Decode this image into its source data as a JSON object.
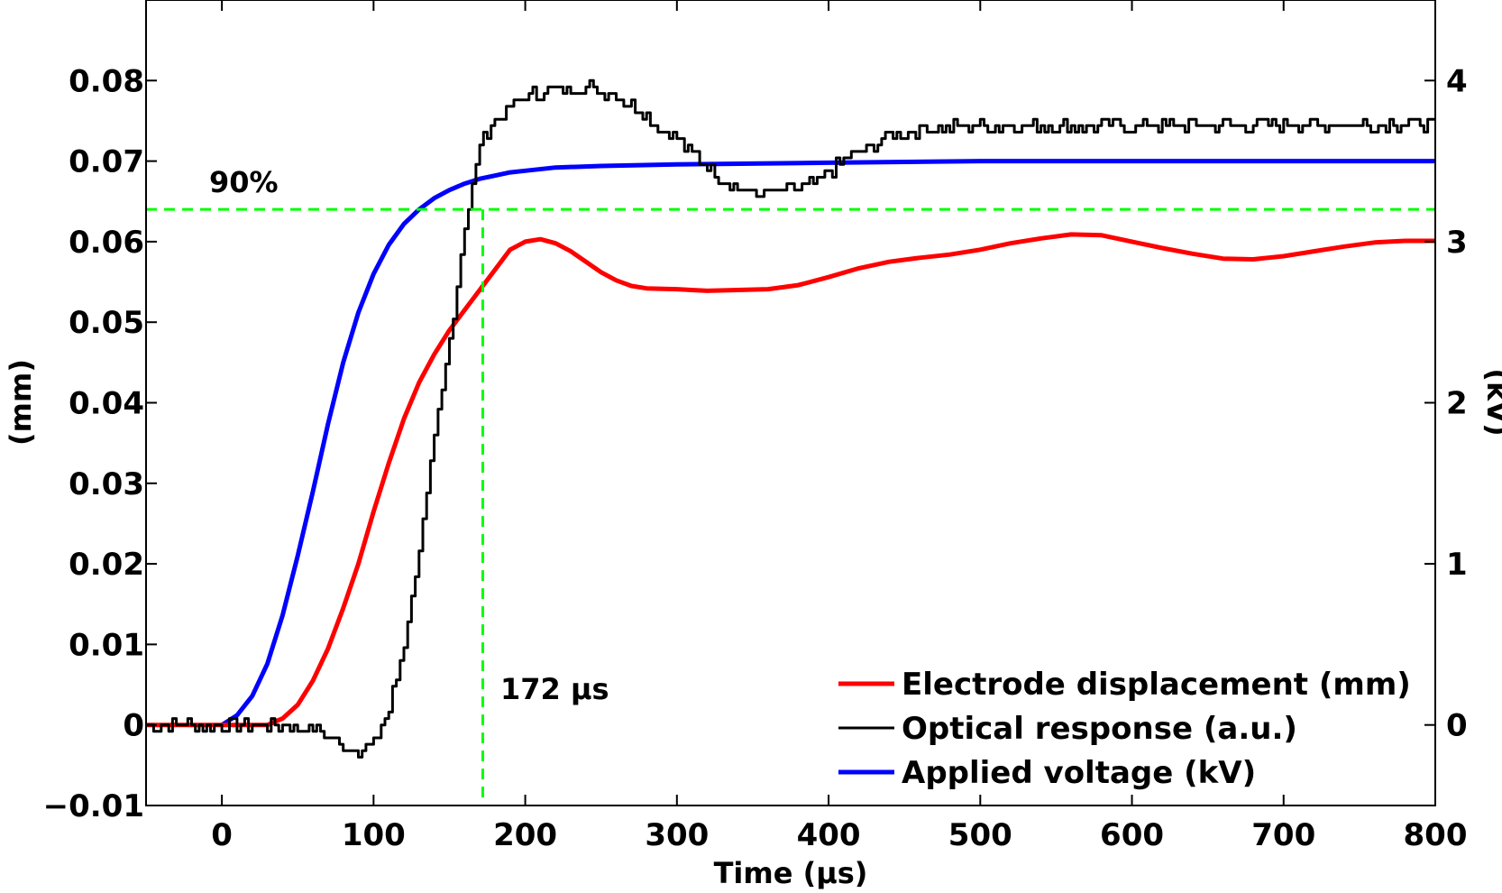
{
  "chart_data": {
    "type": "line",
    "title": "",
    "xlabel": "Time (μs)",
    "ylabel_left": "(mm)",
    "ylabel_right": "(kV)",
    "xlim": [
      -50,
      800
    ],
    "ylim_left": [
      -0.01,
      0.09
    ],
    "ylim_right": [
      -0.5,
      4.5
    ],
    "x_ticks": [
      0,
      100,
      200,
      300,
      400,
      500,
      600,
      700,
      800
    ],
    "x_tick_labels": [
      "0",
      "100",
      "200",
      "300",
      "400",
      "500",
      "600",
      "700",
      "800"
    ],
    "y_left_ticks": [
      -0.01,
      0,
      0.01,
      0.02,
      0.03,
      0.04,
      0.05,
      0.06,
      0.07,
      0.08
    ],
    "y_left_tick_labels": [
      "−0.01",
      "0",
      "0.01",
      "0.02",
      "0.03",
      "0.04",
      "0.05",
      "0.06",
      "0.07",
      "0.08"
    ],
    "y_right_ticks": [
      0,
      1,
      2,
      3,
      4
    ],
    "y_right_tick_labels": [
      "0",
      "1",
      "2",
      "3",
      "4"
    ],
    "grid": false,
    "legend_position": "bottom-right",
    "series": [
      {
        "name": "Electrode displacement (mm)",
        "axis": "left",
        "color": "#ff0000",
        "x": [
          -50,
          0,
          20,
          30,
          40,
          50,
          60,
          70,
          80,
          90,
          100,
          110,
          120,
          130,
          140,
          150,
          160,
          170,
          180,
          190,
          200,
          210,
          220,
          230,
          240,
          250,
          260,
          270,
          280,
          300,
          320,
          340,
          360,
          380,
          400,
          420,
          440,
          460,
          480,
          500,
          520,
          540,
          560,
          580,
          600,
          620,
          640,
          660,
          680,
          700,
          720,
          740,
          760,
          780,
          800
        ],
        "y": [
          0,
          0,
          0,
          0,
          0.0008,
          0.0025,
          0.0055,
          0.0095,
          0.0145,
          0.02,
          0.0265,
          0.0325,
          0.038,
          0.0425,
          0.046,
          0.049,
          0.0515,
          0.054,
          0.0565,
          0.059,
          0.06,
          0.0603,
          0.0598,
          0.0588,
          0.0575,
          0.0562,
          0.0552,
          0.0545,
          0.0542,
          0.0541,
          0.0539,
          0.054,
          0.0541,
          0.0546,
          0.0556,
          0.0567,
          0.0575,
          0.058,
          0.0584,
          0.059,
          0.0598,
          0.0604,
          0.0609,
          0.0608,
          0.06,
          0.0592,
          0.0585,
          0.0579,
          0.0578,
          0.0582,
          0.0588,
          0.0594,
          0.0599,
          0.0601,
          0.0601
        ]
      },
      {
        "name": "Optical response (a.u.)",
        "axis": "left",
        "color": "#000000",
        "x": [
          -50,
          0,
          40,
          60,
          70,
          80,
          90,
          100,
          110,
          120,
          130,
          140,
          150,
          160,
          170,
          180,
          190,
          200,
          210,
          220,
          230,
          240,
          250,
          260,
          270,
          280,
          290,
          300,
          310,
          320,
          330,
          340,
          350,
          360,
          370,
          380,
          390,
          400,
          410,
          420,
          430,
          440,
          450,
          460,
          480,
          500,
          550,
          600,
          650,
          700,
          750,
          800
        ],
        "y": [
          0,
          0,
          0,
          -0.0005,
          -0.0015,
          -0.0025,
          -0.003,
          -0.0025,
          0.002,
          0.01,
          0.022,
          0.035,
          0.048,
          0.062,
          0.072,
          0.075,
          0.0765,
          0.078,
          0.0785,
          0.079,
          0.079,
          0.0792,
          0.0788,
          0.078,
          0.077,
          0.0755,
          0.074,
          0.0725,
          0.071,
          0.0695,
          0.0675,
          0.0665,
          0.066,
          0.066,
          0.0662,
          0.0665,
          0.0672,
          0.0685,
          0.07,
          0.0712,
          0.0722,
          0.073,
          0.0735,
          0.074,
          0.0742,
          0.0743,
          0.0743,
          0.0744,
          0.0745,
          0.0745,
          0.0746,
          0.0747
        ]
      },
      {
        "name": "Applied voltage (kV)",
        "axis": "right",
        "color": "#0000ff",
        "x": [
          0,
          10,
          20,
          30,
          40,
          50,
          60,
          70,
          80,
          90,
          100,
          110,
          120,
          130,
          140,
          150,
          160,
          170,
          180,
          190,
          200,
          220,
          250,
          300,
          400,
          500,
          600,
          700,
          800
        ],
        "y": [
          0,
          0.06,
          0.18,
          0.38,
          0.68,
          1.05,
          1.45,
          1.87,
          2.25,
          2.56,
          2.8,
          2.98,
          3.11,
          3.2,
          3.27,
          3.32,
          3.36,
          3.39,
          3.41,
          3.43,
          3.44,
          3.46,
          3.47,
          3.48,
          3.49,
          3.5,
          3.5,
          3.5,
          3.5
        ]
      }
    ],
    "reference_lines": [
      {
        "orientation": "horizontal",
        "axis": "left",
        "value": 0.064,
        "color": "#00ff00",
        "style": "dashed"
      },
      {
        "orientation": "vertical",
        "value": 172,
        "color": "#00ff00",
        "style": "dashed"
      }
    ],
    "annotations": {
      "percent_label": "90%",
      "time_label": "172 μs"
    }
  }
}
